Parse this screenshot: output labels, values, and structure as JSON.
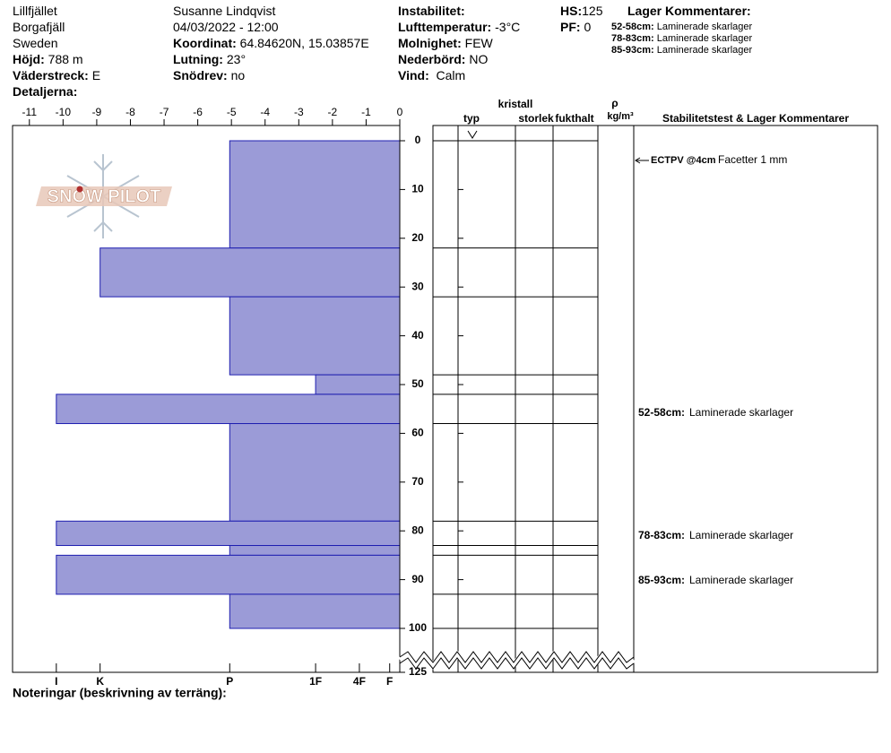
{
  "header": {
    "place": [
      "Lillfjället",
      "Borgafjäll",
      "Sweden"
    ],
    "observer": "Susanne Lindqvist",
    "datetime": "04/03/2022 - 12:00",
    "fields": [
      {
        "label": "Höjd:",
        "value": "788 m"
      },
      {
        "label": "Väderstreck:",
        "value": "E"
      },
      {
        "label": "Detaljerna:",
        "value": ""
      },
      {
        "label": "Koordinat:",
        "value": "64.84620N, 15.03857E"
      },
      {
        "label": "Lutning:",
        "value": "23°"
      },
      {
        "label": "Snödrev:",
        "value": "no"
      },
      {
        "label": "Instabilitet:",
        "value": ""
      },
      {
        "label": "Lufttemperatur:",
        "value": "-3°C"
      },
      {
        "label": "Molnighet:",
        "value": "FEW"
      },
      {
        "label": "Nederbörd:",
        "value": "NO"
      },
      {
        "label": "Vind:",
        "value": "Calm"
      },
      {
        "label": "HS:",
        "value": "125"
      },
      {
        "label": "PF:",
        "value": "0"
      }
    ],
    "comments_title": "Lager Kommentarer:",
    "comments": [
      {
        "depth": "52-58cm:",
        "text": "Laminerade skarlager"
      },
      {
        "depth": "78-83cm:",
        "text": "Laminerade skarlager"
      },
      {
        "depth": "85-93cm:",
        "text": "Laminerade skarlager"
      }
    ]
  },
  "logo": {
    "text": "SNOW PILOT"
  },
  "chart_data": {
    "type": "hardness-profile",
    "xlim": [
      -11.5,
      0
    ],
    "xticks": [
      -11,
      -10,
      -9,
      -8,
      -7,
      -6,
      -5,
      -4,
      -3,
      -2,
      -1,
      0
    ],
    "hardness_ticks": [
      {
        "value": -10.2,
        "label": "I"
      },
      {
        "value": -8.9,
        "label": "K"
      },
      {
        "value": -5.05,
        "label": "P"
      },
      {
        "value": -2.5,
        "label": "1F"
      },
      {
        "value": -1.2,
        "label": "4F"
      },
      {
        "value": -0.3,
        "label": "F"
      }
    ],
    "ylim": [
      -3,
      125
    ],
    "yticks": [
      0,
      10,
      20,
      30,
      40,
      50,
      60,
      70,
      80,
      90,
      100,
      125
    ],
    "layers": {
      "top": [
        0,
        22,
        32,
        48,
        52,
        58,
        78,
        83,
        85,
        93
      ],
      "bottom": [
        22,
        32,
        48,
        52,
        58,
        78,
        83,
        85,
        93,
        100
      ],
      "hardness": [
        -5.05,
        -8.9,
        -5.05,
        -2.5,
        -10.2,
        -5.05,
        -10.2,
        -5.05,
        -10.2,
        -5.05
      ]
    },
    "color": "#9b9bd7",
    "edge_color": "#1f1fb0",
    "table_headers": [
      "typ",
      "kristall",
      "storlek",
      "fukthalt",
      "ρ",
      "kg/m³",
      "Stabilitetstest & Lager Kommentarer"
    ],
    "stability_test": {
      "name": "ECTPV @4cm",
      "text": "Facetter 1 mm"
    },
    "layer_comments": [
      {
        "depth": "52-58cm:",
        "text": "Laminerade skarlager"
      },
      {
        "depth": "78-83cm:",
        "text": "Laminerade skarlager"
      },
      {
        "depth": "85-93cm:",
        "text": "Laminerade skarlager"
      }
    ],
    "footer": "Noteringar (beskrivning av terräng):"
  }
}
